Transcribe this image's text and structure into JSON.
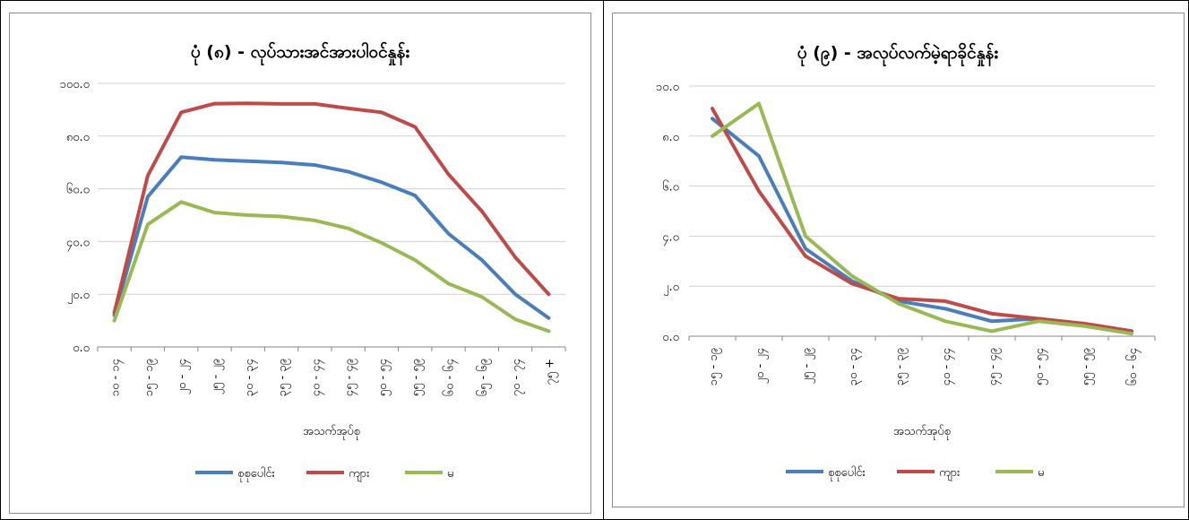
{
  "chart_data": [
    {
      "type": "line",
      "title": "ပုံ (၈) - လုပ်သားအင်အားပါဝင်နှုန်း",
      "xlabel": "အသက်အုပ်စု",
      "ylabel": "",
      "ylim": [
        0,
        100
      ],
      "yticks": [
        "၀.၀",
        "၂၀.၀",
        "၄၀.၀",
        "၆၀.၀",
        "၈၀.၀",
        "၁၀၀.၀"
      ],
      "categories": [
        "၁၀ - ၁၄",
        "၁၅ - ၁၉",
        "၂၀ - ၂၄",
        "၂၅ - ၂၉",
        "၃၀ - ၃၄",
        "၃၅ - ၃၉",
        "၄၀ - ၄၄",
        "၄၅ - ၄၉",
        "၅၀ - ၅၄",
        "၅၅ - ၅၉",
        "၆၀ - ၆၄",
        "၆၅ - ၆၉",
        "၇၀ - ၇၄",
        "၇၅ +"
      ],
      "series": [
        {
          "name": "စုစုပေါင်း",
          "color": "#4a7ebb",
          "values": [
            12,
            57,
            72,
            71,
            70.5,
            70,
            69,
            66.5,
            62.5,
            57.5,
            43,
            33,
            20,
            11
          ]
        },
        {
          "name": "ကျား",
          "color": "#be4b48",
          "values": [
            13,
            65,
            89,
            92.3,
            92.4,
            92.2,
            92.2,
            90.5,
            89,
            83.5,
            65.5,
            51.5,
            34,
            20
          ]
        },
        {
          "name": "မ",
          "color": "#98b954",
          "values": [
            10,
            46.5,
            55,
            51,
            50,
            49.5,
            48,
            45,
            39.5,
            33,
            24,
            19,
            10.5,
            6
          ]
        }
      ],
      "legend": "bottom",
      "grid": true
    },
    {
      "type": "line",
      "title": "ပုံ (၉) - အလုပ်လက်မဲ့ရာခိုင်နှုန်း",
      "xlabel": "အသက်အုပ်စု",
      "ylabel": "",
      "ylim": [
        0,
        10
      ],
      "yticks": [
        "၀.၀",
        "၂.၀",
        "၄.၀",
        "၆.၀",
        "၈.၀",
        "၁၀.၀"
      ],
      "categories": [
        "၁၅ - ၁၉",
        "၂၀ - ၂၄",
        "၂၅ - ၂၉",
        "၃၀ - ၃၄",
        "၃၅ - ၃၉",
        "၄၀ - ၄၄",
        "၄၅ - ၄၉",
        "၅၀ - ၅၄",
        "၅၅ - ၅၉",
        "၆၀ - ၆၄"
      ],
      "series": [
        {
          "name": "စုစုပေါင်း",
          "color": "#4a7ebb",
          "values": [
            8.7,
            7.2,
            3.5,
            2.2,
            1.4,
            1.1,
            0.6,
            0.7,
            0.5,
            0.2
          ]
        },
        {
          "name": "ကျား",
          "color": "#be4b48",
          "values": [
            9.1,
            5.8,
            3.2,
            2.1,
            1.5,
            1.4,
            0.9,
            0.7,
            0.5,
            0.2
          ]
        },
        {
          "name": "မ",
          "color": "#98b954",
          "values": [
            8.0,
            9.3,
            4.0,
            2.4,
            1.3,
            0.6,
            0.2,
            0.6,
            0.4,
            0.1
          ]
        }
      ],
      "legend": "bottom",
      "grid": true
    }
  ]
}
